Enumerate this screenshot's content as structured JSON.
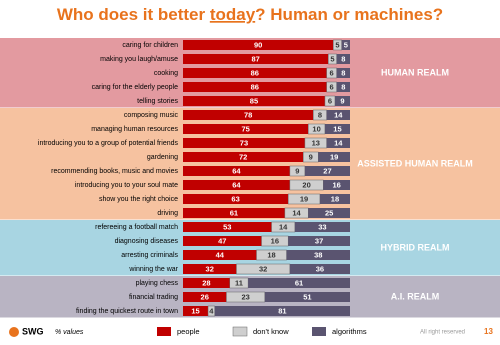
{
  "chart_data": {
    "type": "stacked-bar-horizontal",
    "title": [
      {
        "text": "Who does it better "
      },
      {
        "text": "today",
        "underline": true
      },
      {
        "text": "? Human or machines?"
      }
    ],
    "groups": [
      {
        "name": "HUMAN REALM",
        "color": "#e39aa0",
        "categories": [
          "caring for children",
          "making you laugh/amuse",
          "cooking",
          "caring for the elderly people",
          "telling stories"
        ]
      },
      {
        "name": "ASSISTED HUMAN REALM",
        "color": "#f6c2a0",
        "categories": [
          "composing music",
          "managing human resources",
          "introducing you to a group of potential friends",
          "gardening",
          "recommending books, music and movies",
          "introducing you to your soul mate",
          "show you the right choice",
          "driving"
        ]
      },
      {
        "name": "HYBRID REALM",
        "color": "#a8d5e2",
        "categories": [
          "refereeing a football match",
          "diagnosing diseases",
          "arresting criminals",
          "winning the war"
        ]
      },
      {
        "name": "A.I. REALM",
        "color": "#b9b4c3",
        "categories": [
          "playing chess",
          "financial trading",
          "finding the quickest route in town"
        ]
      }
    ],
    "series": [
      {
        "name": "people",
        "color": "#c00000",
        "values": [
          90,
          87,
          86,
          86,
          85,
          78,
          75,
          73,
          72,
          64,
          64,
          63,
          61,
          53,
          47,
          44,
          32,
          28,
          26,
          15
        ]
      },
      {
        "name": "don't know",
        "color": "#cfcfcf",
        "values": [
          5,
          5,
          6,
          6,
          6,
          8,
          10,
          13,
          9,
          9,
          20,
          19,
          14,
          14,
          16,
          18,
          32,
          11,
          23,
          4
        ]
      },
      {
        "name": "algorithms",
        "color": "#5a5470",
        "values": [
          5,
          8,
          8,
          8,
          9,
          14,
          15,
          14,
          19,
          27,
          16,
          18,
          25,
          33,
          37,
          38,
          36,
          61,
          51,
          81
        ]
      }
    ],
    "xlim": [
      0,
      100
    ]
  },
  "footer": {
    "logo": "SWG",
    "note": "% values",
    "rights": "All right reserved",
    "page": "13"
  }
}
